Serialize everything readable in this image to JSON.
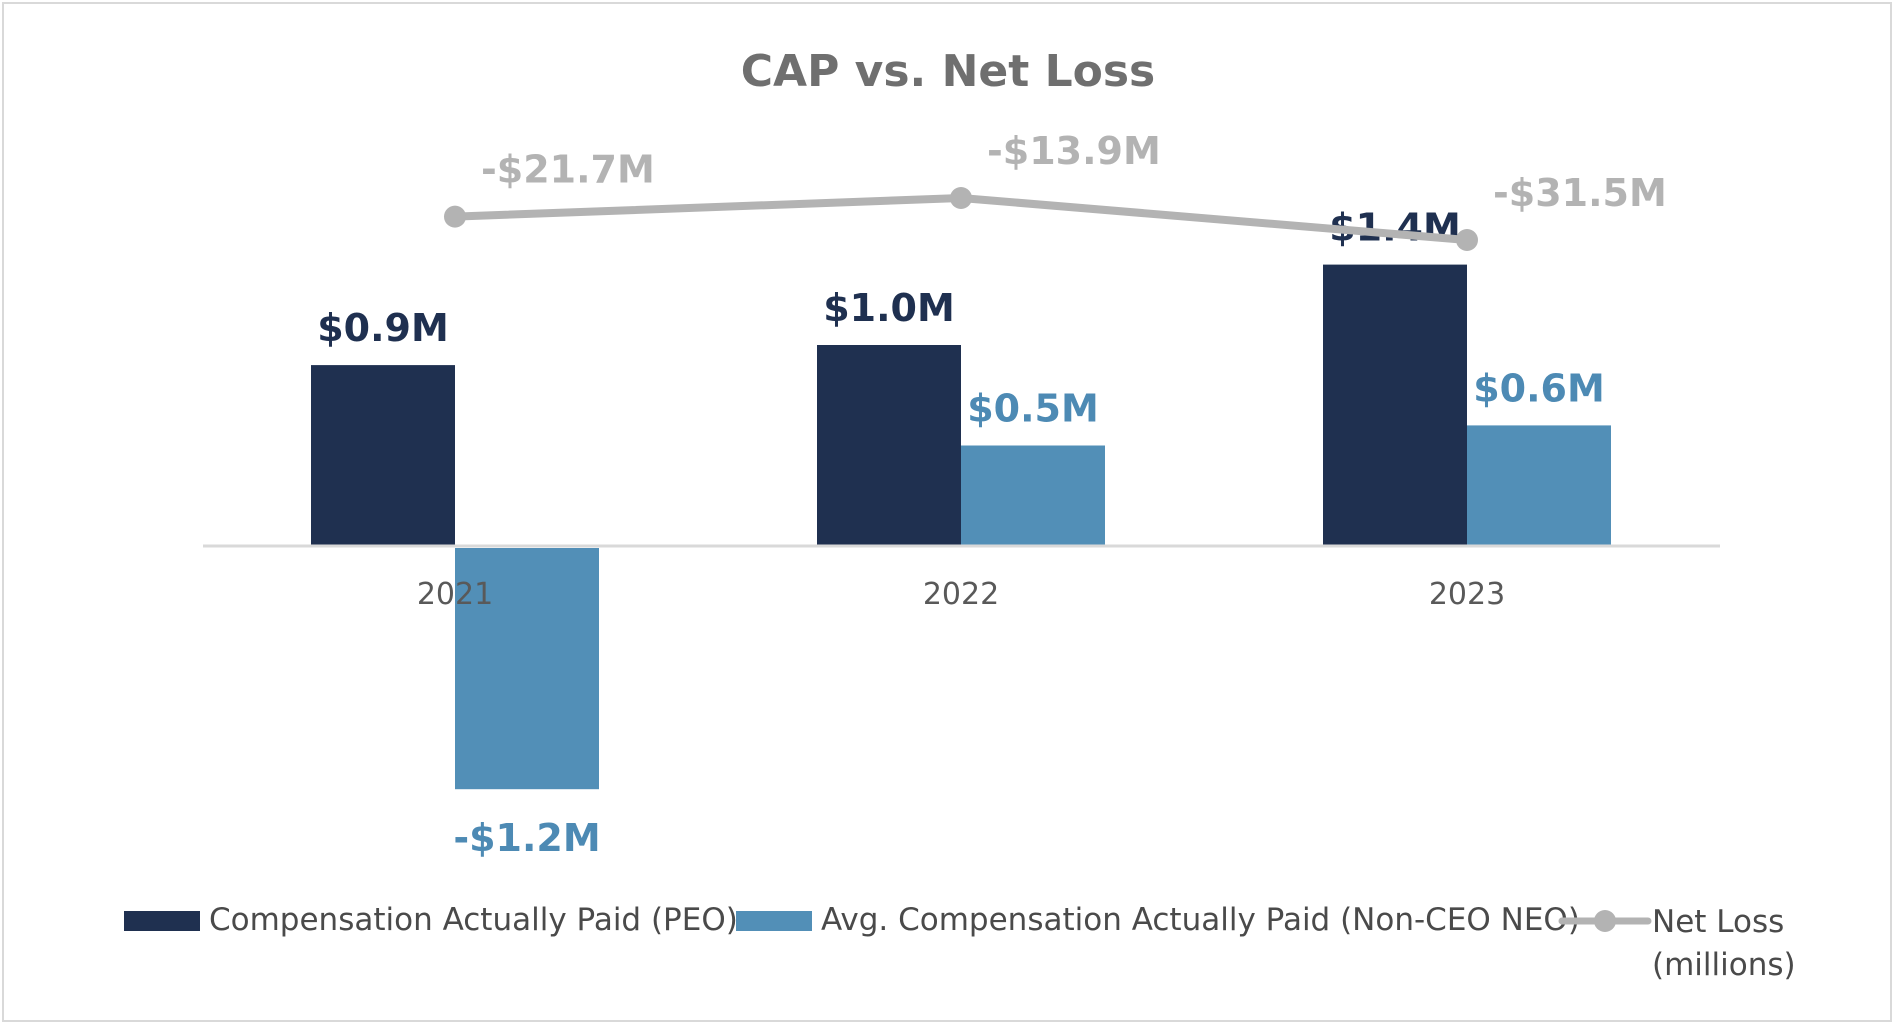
{
  "chart_data": {
    "type": "bar",
    "title": "CAP vs. Net Loss",
    "categories": [
      "2021",
      "2022",
      "2023"
    ],
    "xlabel": "",
    "ylabel": "",
    "series": [
      {
        "name": "Compensation Actually Paid (PEO)",
        "kind": "bar",
        "color": "#1f3050",
        "values": [
          0.9,
          1.0,
          1.4
        ],
        "labels": [
          "$0.9M",
          "$1.0M",
          "$1.4M"
        ],
        "label_color": "#1f3050"
      },
      {
        "name": "Avg. Compensation Actually Paid (Non-CEO NEO)",
        "kind": "bar",
        "color": "#528fb7",
        "values": [
          -1.2,
          0.5,
          0.6
        ],
        "labels": [
          "-$1.2M",
          "$0.5M",
          "$0.6M"
        ],
        "label_color": "#4d8ab4"
      },
      {
        "name": "Net Loss (millions)",
        "legend_lines": [
          "Net Loss",
          "(millions)"
        ],
        "kind": "line",
        "color": "#b3b3b3",
        "values": [
          -21.7,
          -13.9,
          -31.5
        ],
        "labels": [
          "-$21.7M",
          "-$13.9M",
          "-$31.5M"
        ],
        "label_color": "#b3b3b3"
      }
    ],
    "ylim": [
      -1.2,
      1.4
    ],
    "secondary_ylim": [
      -31.5,
      -13.9
    ],
    "grid": false,
    "legend_position": "bottom"
  }
}
